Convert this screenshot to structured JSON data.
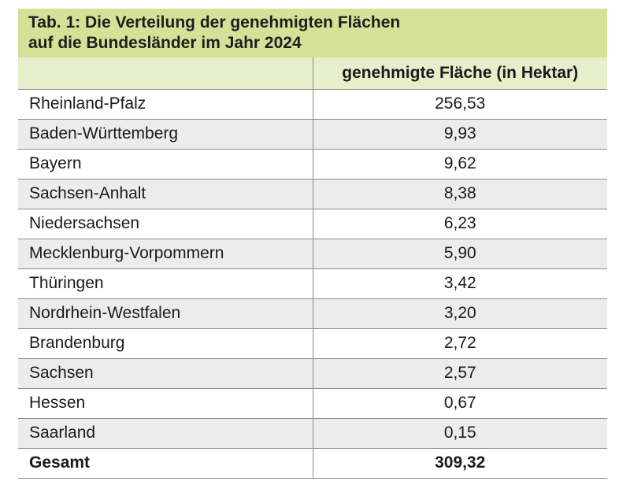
{
  "title": {
    "line1": "Tab. 1: Die Verteilung der genehmigten Flächen",
    "line2": "auf die Bundesländer im Jahr 2024"
  },
  "column_header": "genehmigte Fläche (in Hektar)",
  "rows": [
    {
      "state": "Rheinland-Pfalz",
      "value": "256,53"
    },
    {
      "state": "Baden-Württemberg",
      "value": "9,93"
    },
    {
      "state": "Bayern",
      "value": "9,62"
    },
    {
      "state": "Sachsen-Anhalt",
      "value": "8,38"
    },
    {
      "state": "Niedersachsen",
      "value": "6,23"
    },
    {
      "state": "Mecklenburg-Vorpommern",
      "value": "5,90"
    },
    {
      "state": "Thüringen",
      "value": "3,42"
    },
    {
      "state": "Nordrhein-Westfalen",
      "value": "3,20"
    },
    {
      "state": "Brandenburg",
      "value": "2,72"
    },
    {
      "state": "Sachsen",
      "value": "2,57"
    },
    {
      "state": "Hessen",
      "value": "0,67"
    },
    {
      "state": "Saarland",
      "value": "0,15"
    }
  ],
  "total": {
    "label": "Gesamt",
    "value": "309,32"
  },
  "colors": {
    "title_bg": "#d4e197",
    "header_bg": "#e7eecb",
    "alt_row_bg": "#ececec"
  }
}
